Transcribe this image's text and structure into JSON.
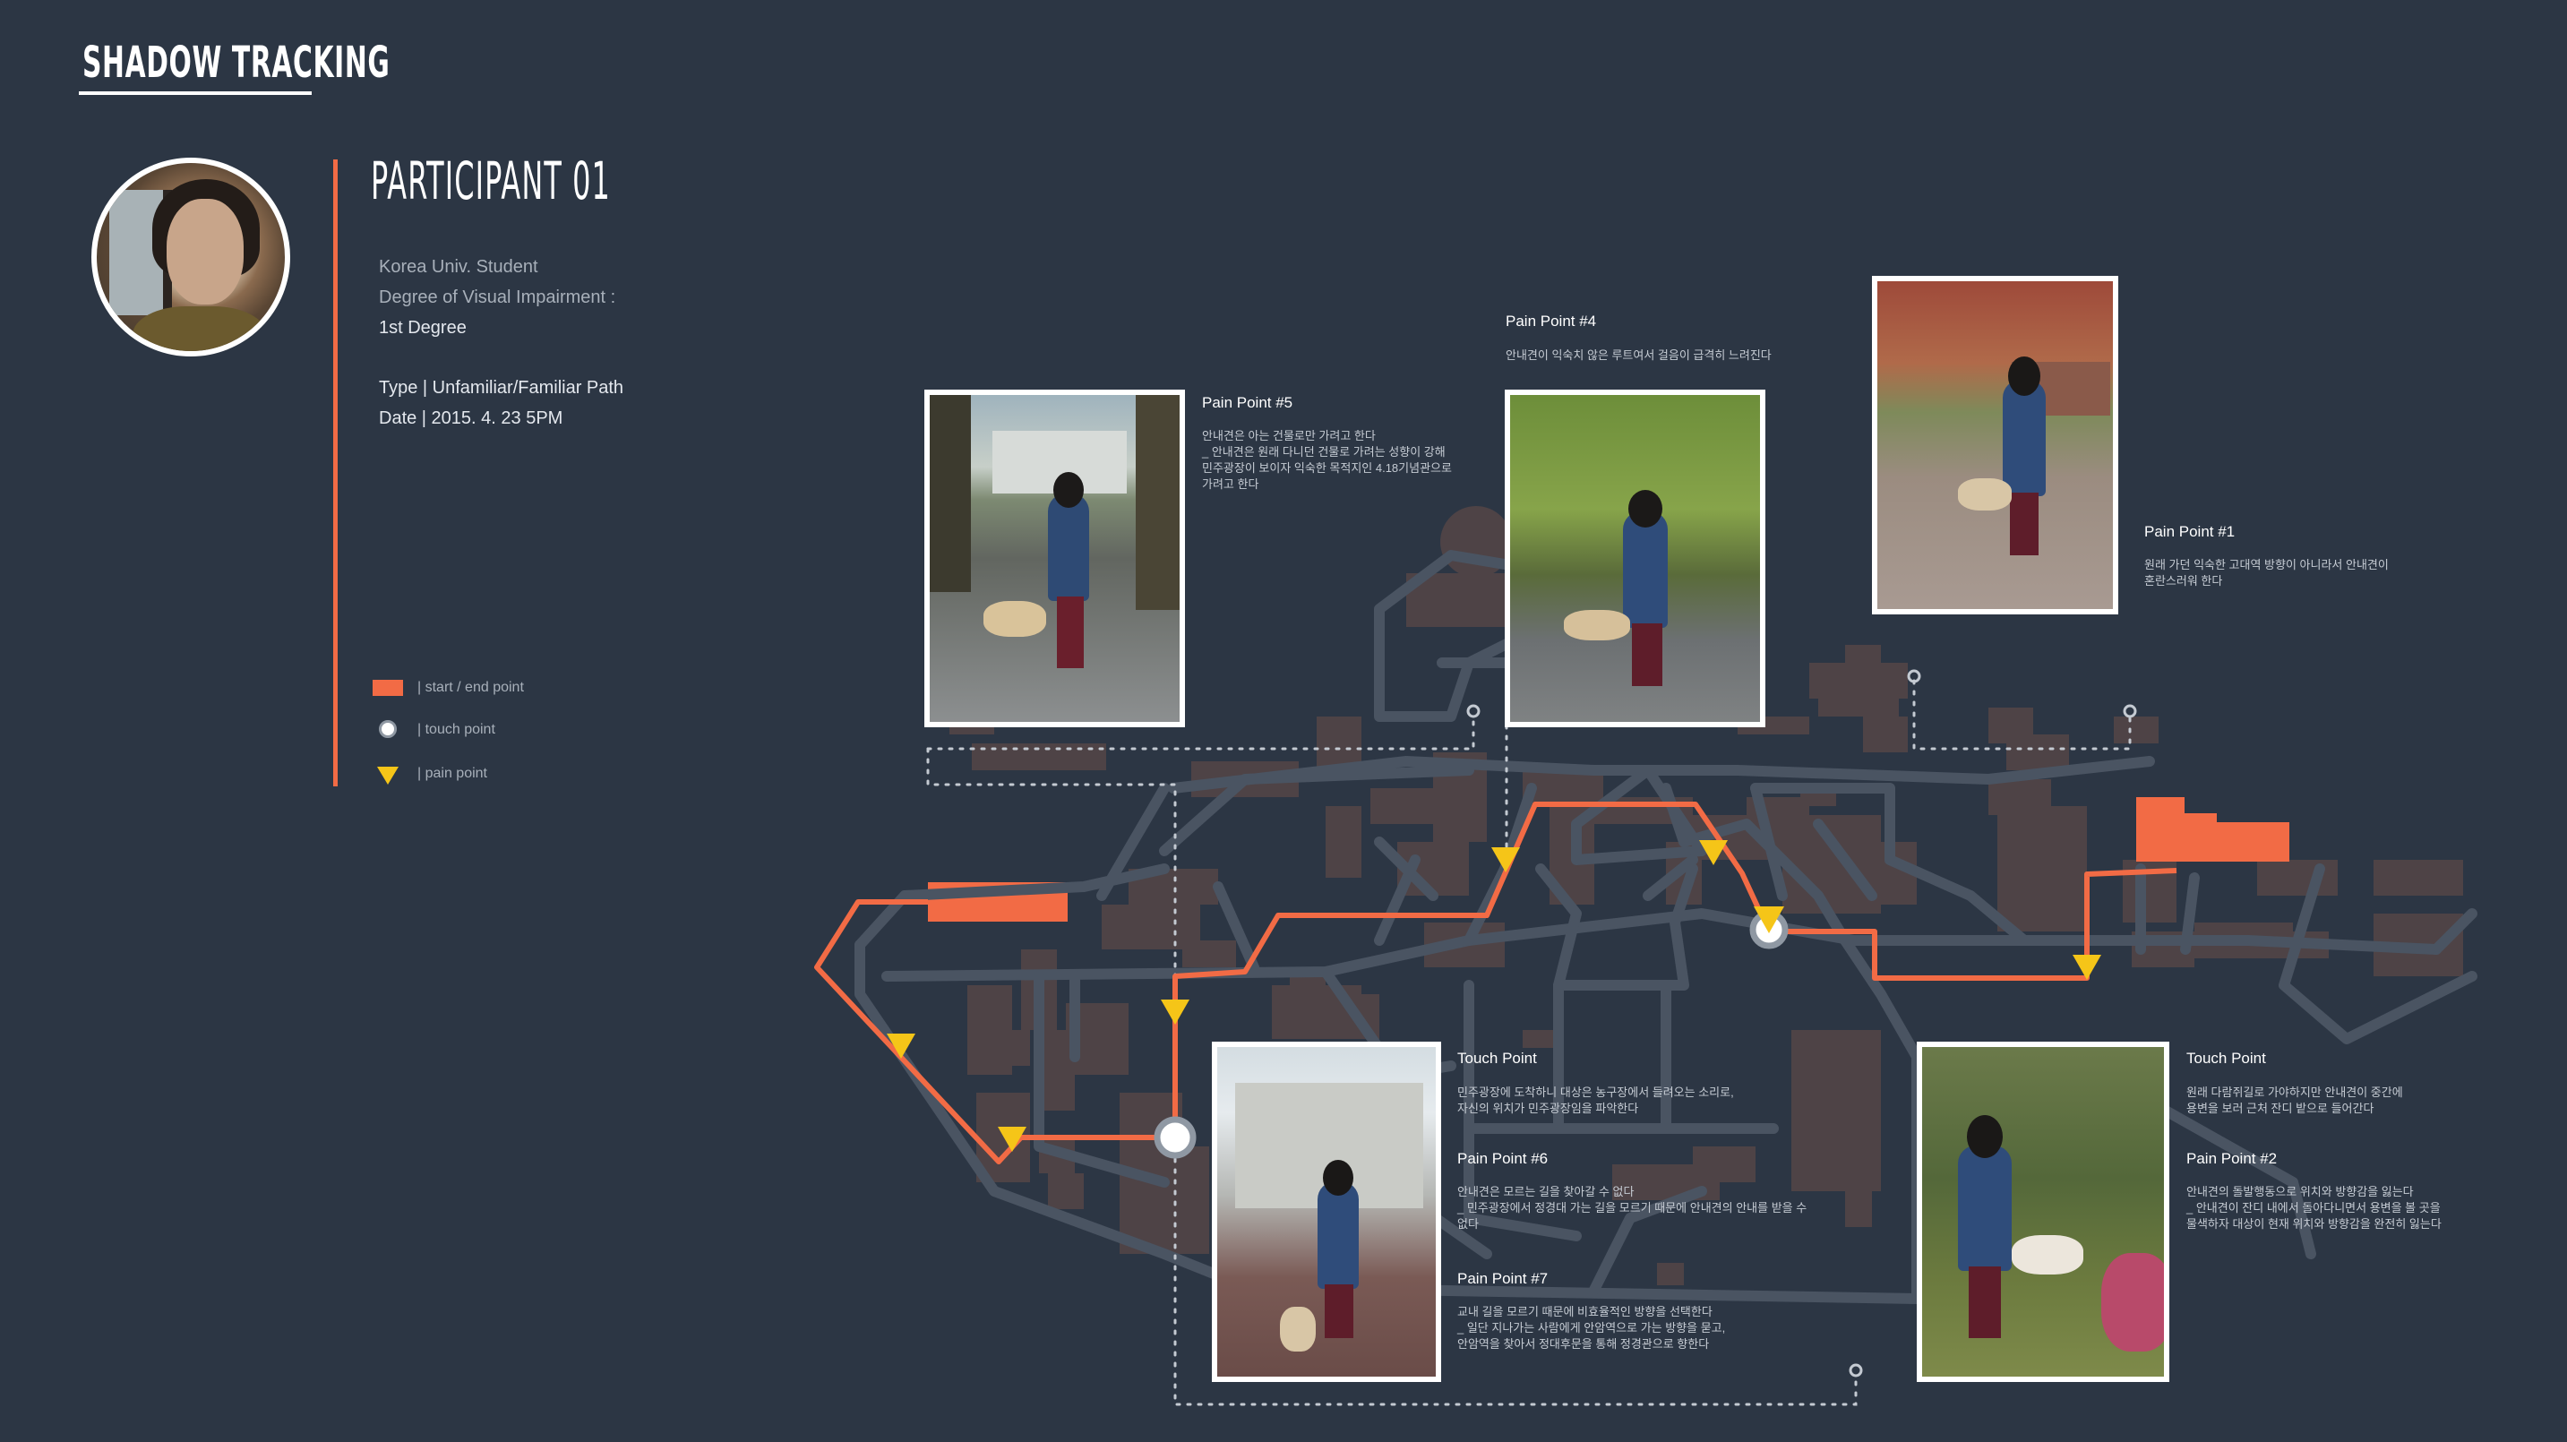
{
  "header": {
    "title": "SHADOW TRACKING"
  },
  "participant": {
    "name": "PARTICIPANT  01",
    "affiliation": "Korea Univ. Student",
    "impairment_label": "Degree of Visual Impairment :",
    "impairment_value": "1st Degree",
    "type": "Type | Unfamiliar/Familiar Path",
    "date": "Date | 2015. 4. 23 5PM"
  },
  "legend": {
    "start_end": "|   start / end point",
    "touch": "|   touch point",
    "pain": "|   pain point"
  },
  "annotations": {
    "pp5": {
      "title": "Pain Point #5",
      "text": "안내견은 아는 건물로만 가려고 한다\n_ 안내견은 원래 다니던 건물로 가려는 성향이 강해\n  민주광장이 보이자 익숙한 목적지인 4.18기념관으로\n  가려고 한다"
    },
    "pp4": {
      "title": "Pain Point #4",
      "text": "안내견이 익숙치 않은 루트여서 걸음이 급격히 느려진다"
    },
    "pp1": {
      "title": "Pain Point #1",
      "text": "원래 가던 익숙한 고대역 방향이 아니라서 안내견이\n혼란스러워 한다"
    },
    "touch1": {
      "title": "Touch Point",
      "text": "민주광장에 도착하니 대상은 농구장에서 들려오는 소리로,\n자신의 위치가 민주광장임을 파악한다"
    },
    "pp6": {
      "title": "Pain Point #6",
      "text": "안내견은 모르는 길을 찾아갈 수 없다\n_ 민주광장에서 정경대 가는 길을 모르기 때문에 안내견의 안내를 받을 수\n  없다"
    },
    "pp7": {
      "title": "Pain Point #7",
      "text": "교내 길을 모르기 때문에 비효율적인 방향을 선택한다\n_ 일단 지나가는 사람에게 안암역으로 가는 방향을 묻고,\n  안암역을 찾아서 정대후문을 통해 정경관으로 향한다"
    },
    "touch2": {
      "title": "Touch Point",
      "text": "원래 다람쥐길로 가야하지만 안내견이 중간에\n용변을 보러 근처 잔디 밭으로 들어간다"
    },
    "pp2": {
      "title": "Pain Point #2",
      "text": "안내견의 돌발행동으로 위치와 방향감을 잃는다\n_ 안내견이 잔디 내에서 돌아다니면서 용변을 볼 곳을\n  물색하자 대상이 현재 위치와 방향감을 완전히 잃는다"
    }
  },
  "colors": {
    "background": "#2c3644",
    "route": "#f26b45",
    "pain": "#f5c518",
    "road": "#4a5462",
    "building": "#4e4346"
  },
  "icons": {
    "start_end": "orange-rectangle",
    "touch": "white-circle",
    "pain": "yellow-triangle"
  }
}
